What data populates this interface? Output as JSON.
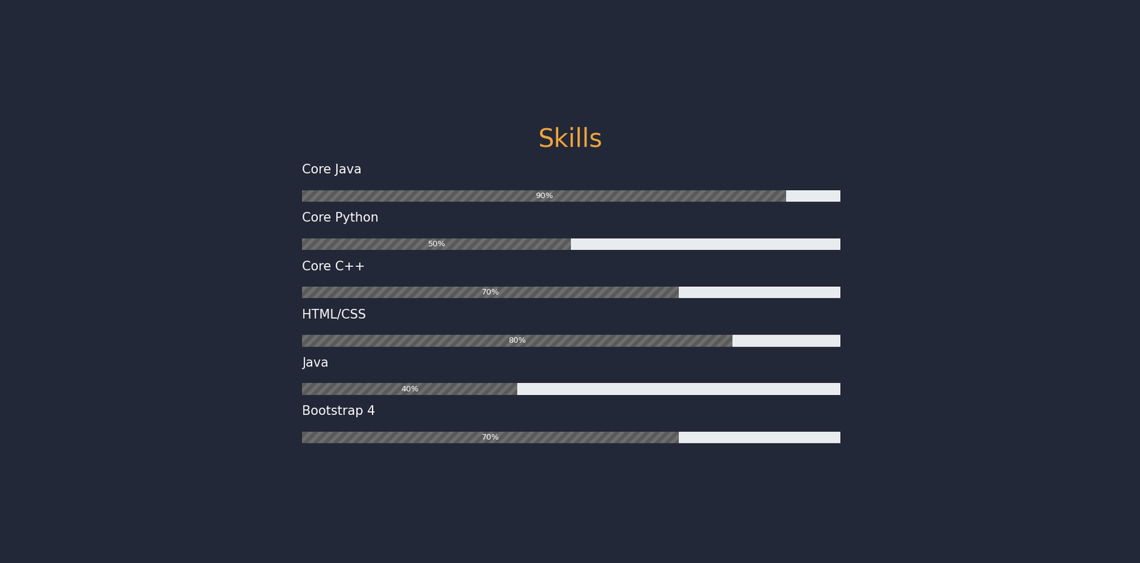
{
  "chart_data": {
    "type": "bar",
    "title": "Skills",
    "orientation": "horizontal",
    "categories": [
      "Core Java",
      "Core Python",
      "Core C++",
      "HTML/CSS",
      "Java",
      "Bootstrap 4"
    ],
    "values": [
      90,
      50,
      70,
      80,
      40,
      70
    ],
    "value_labels": [
      "90%",
      "50%",
      "70%",
      "80%",
      "40%",
      "70%"
    ],
    "data_labels": true,
    "xlim": [
      0,
      100
    ],
    "tick_labels": false,
    "grid": false,
    "color": "#5a5a5a"
  }
}
